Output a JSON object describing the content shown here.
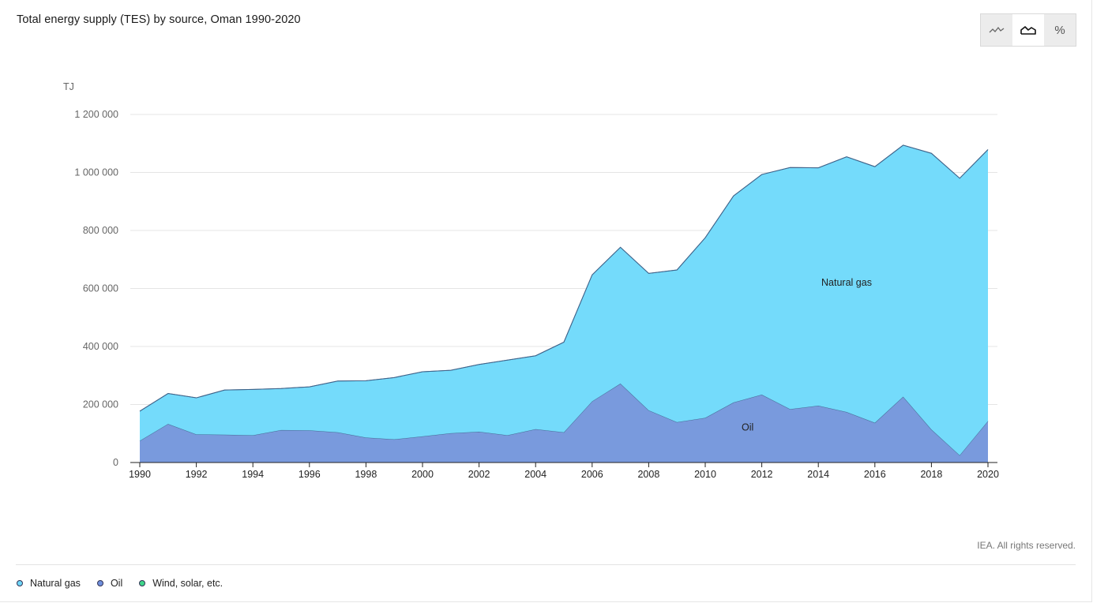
{
  "title": "Total energy supply (TES) by source, Oman 1990-2020",
  "toggle": {
    "buttons": [
      {
        "name": "line-chart-icon",
        "active": false
      },
      {
        "name": "area-chart-icon",
        "active": true
      },
      {
        "name": "percent-icon",
        "label": "%",
        "active": false
      }
    ]
  },
  "credit": "IEA. All rights reserved.",
  "legend": [
    {
      "label": "Natural gas",
      "color": "#6fd6f7"
    },
    {
      "label": "Oil",
      "color": "#6f8fdc"
    },
    {
      "label": "Wind, solar, etc.",
      "color": "#3ed68a"
    }
  ],
  "chart_data": {
    "type": "area",
    "stacked": true,
    "unit_label": "TJ",
    "ylim": [
      0,
      1200000
    ],
    "yticks": [
      0,
      200000,
      400000,
      600000,
      800000,
      1000000,
      1200000
    ],
    "ytick_labels": [
      "0",
      "200 000",
      "400 000",
      "600 000",
      "800 000",
      "1 000 000",
      "1 200 000"
    ],
    "xticks": [
      1990,
      1992,
      1994,
      1996,
      1998,
      2000,
      2002,
      2004,
      2006,
      2008,
      2010,
      2012,
      2014,
      2016,
      2018,
      2020
    ],
    "grid": true,
    "x": [
      1990,
      1991,
      1992,
      1993,
      1994,
      1995,
      1996,
      1997,
      1998,
      1999,
      2000,
      2001,
      2002,
      2003,
      2004,
      2005,
      2006,
      2007,
      2008,
      2009,
      2010,
      2011,
      2012,
      2013,
      2014,
      2015,
      2016,
      2017,
      2018,
      2019,
      2020
    ],
    "series": [
      {
        "name": "Oil",
        "color": "#7597dc",
        "values": [
          75000,
          133000,
          97000,
          96000,
          94000,
          112000,
          111000,
          104000,
          86000,
          80000,
          90000,
          101000,
          106000,
          94000,
          115000,
          104000,
          211000,
          272000,
          180000,
          139000,
          154000,
          207000,
          234000,
          184000,
          196000,
          174000,
          137000,
          227000,
          114000,
          25000,
          143000
        ]
      },
      {
        "name": "Natural gas",
        "color": "#6fdafb",
        "values": [
          102000,
          105000,
          126000,
          154000,
          158000,
          143000,
          150000,
          177000,
          196000,
          213000,
          223000,
          217000,
          232000,
          259000,
          253000,
          311000,
          436000,
          470000,
          472000,
          525000,
          621000,
          712000,
          759000,
          833000,
          820000,
          880000,
          883000,
          867000,
          952000,
          955000,
          936000
        ]
      },
      {
        "name": "Wind, solar, etc.",
        "color": "#3ed68a",
        "values": [
          0,
          0,
          0,
          0,
          0,
          0,
          0,
          0,
          0,
          0,
          0,
          0,
          0,
          0,
          0,
          0,
          0,
          0,
          0,
          0,
          0,
          0,
          0,
          0,
          0,
          0,
          0,
          0,
          0,
          0,
          0
        ]
      }
    ],
    "area_labels": [
      {
        "text": "Natural gas",
        "x": 2015,
        "y": 610000
      },
      {
        "text": "Oil",
        "x": 2011.5,
        "y": 110000
      }
    ]
  }
}
